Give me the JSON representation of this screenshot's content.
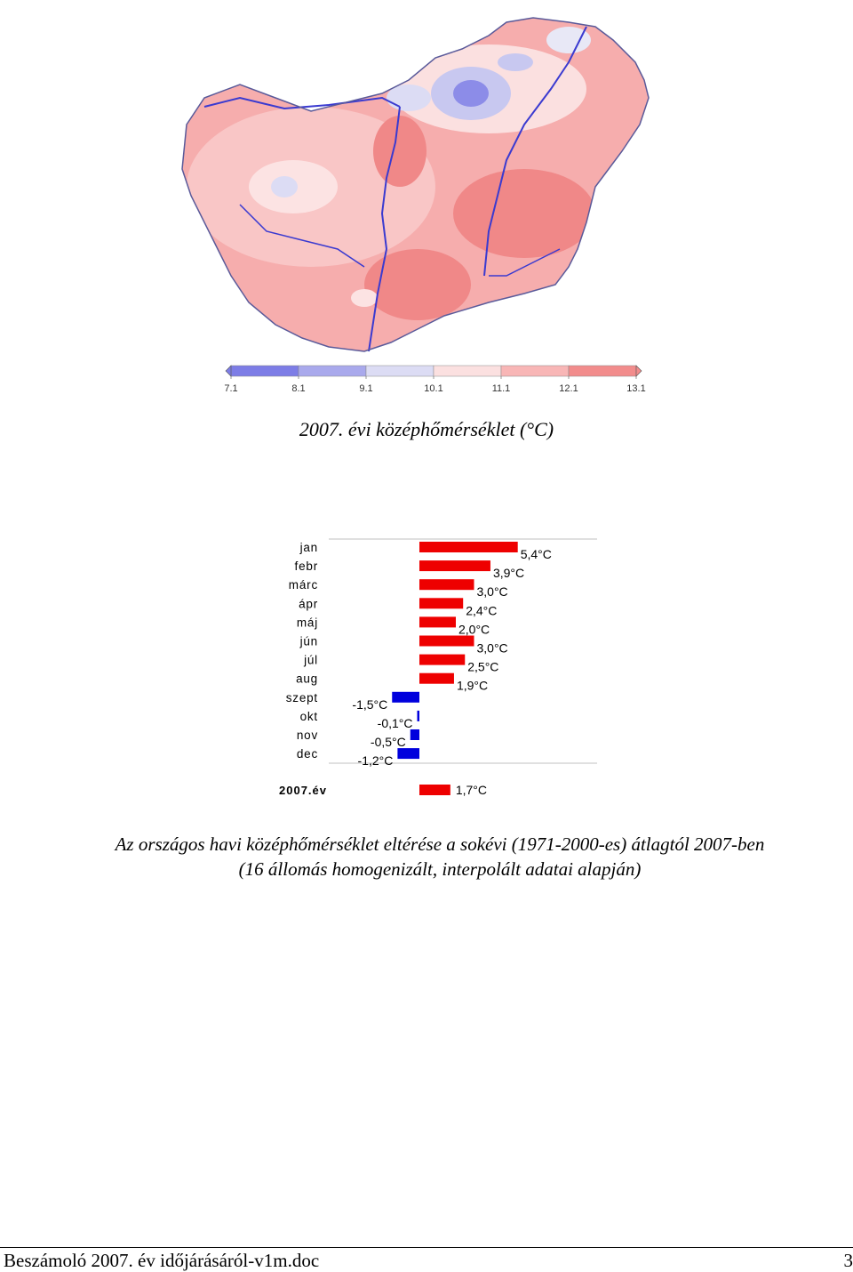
{
  "map": {
    "title": "2007. évi középhőmérséklet (°C)",
    "legend": {
      "ticks": [
        "7.1",
        "8.1",
        "9.1",
        "10.1",
        "11.1",
        "12.1",
        "13.1"
      ],
      "colors": [
        "#7d7de6",
        "#a9a9ec",
        "#dcdcf4",
        "#fbe0e0",
        "#f8b6b6",
        "#f28c8c"
      ]
    }
  },
  "chart_data": {
    "type": "bar",
    "orientation": "horizontal",
    "categories": [
      "jan",
      "febr",
      "márc",
      "ápr",
      "máj",
      "jún",
      "júl",
      "aug",
      "szept",
      "okt",
      "nov",
      "dec"
    ],
    "values": [
      5.4,
      3.9,
      3.0,
      2.4,
      2.0,
      3.0,
      2.5,
      1.9,
      -1.5,
      -0.1,
      -0.5,
      -1.2
    ],
    "labels": [
      "5,4°C",
      "3,9°C",
      "3,0°C",
      "2,4°C",
      "2,0°C",
      "3,0°C",
      "2,5°C",
      "1,9°C",
      "-1,5°C",
      "-0,1°C",
      "-0,5°C",
      "-1,2°C"
    ],
    "annual": {
      "category": "2007.év",
      "value": 1.7,
      "label": "1,7°C"
    },
    "positive_color": "#ee0000",
    "negative_color": "#0000dd"
  },
  "caption": {
    "line1": "Az országos havi középhőmérséklet eltérése a sokévi (1971-2000-es) átlagtól 2007-ben",
    "line2": "(16 állomás homogenizált, interpolált adatai alapján)"
  },
  "footer": {
    "left": "Beszámoló 2007. év időjárásáról-v1m.doc",
    "right": "3"
  }
}
